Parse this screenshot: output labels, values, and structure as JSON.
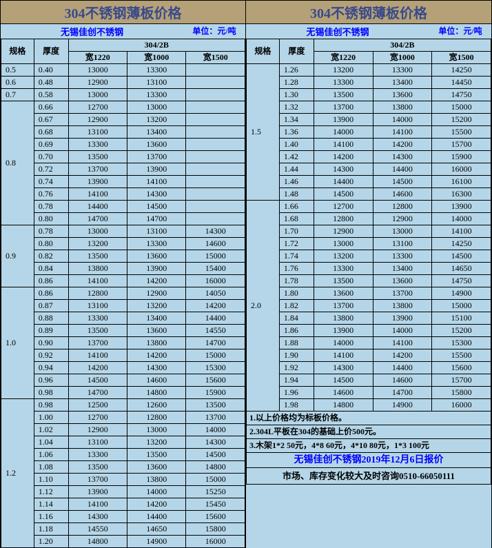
{
  "title": "304不锈钢薄板价格",
  "company": "无锡佳创不锈钢",
  "unit": "单位：元/吨",
  "headers": {
    "spec": "规格",
    "thick": "厚度",
    "grade": "304/2B",
    "w1220": "宽1220",
    "w1000": "宽1000",
    "w1500": "宽1500"
  },
  "colors": {
    "title_bg": "#b5a178",
    "title_fg": "#3a4a8a",
    "cell_bg": "#b5d6e8",
    "link_fg": "#0000ff",
    "border": "#000000"
  },
  "left": [
    {
      "spec": "0.5",
      "rows": [
        {
          "t": "0.40",
          "p": [
            "13000",
            "13300",
            ""
          ]
        }
      ]
    },
    {
      "spec": "0.6",
      "rows": [
        {
          "t": "0.48",
          "p": [
            "12900",
            "13100",
            ""
          ]
        }
      ]
    },
    {
      "spec": "0.7",
      "rows": [
        {
          "t": "0.58",
          "p": [
            "13000",
            "13300",
            ""
          ]
        }
      ]
    },
    {
      "spec": "0.8",
      "rows": [
        {
          "t": "0.66",
          "p": [
            "12700",
            "13000",
            ""
          ]
        },
        {
          "t": "0.67",
          "p": [
            "12900",
            "13200",
            ""
          ]
        },
        {
          "t": "0.68",
          "p": [
            "13100",
            "13400",
            ""
          ]
        },
        {
          "t": "0.69",
          "p": [
            "13300",
            "13600",
            ""
          ]
        },
        {
          "t": "0.70",
          "p": [
            "13500",
            "13700",
            ""
          ]
        },
        {
          "t": "0.72",
          "p": [
            "13700",
            "13900",
            ""
          ]
        },
        {
          "t": "0.74",
          "p": [
            "13900",
            "14100",
            ""
          ]
        },
        {
          "t": "0.76",
          "p": [
            "14100",
            "14300",
            ""
          ]
        },
        {
          "t": "0.78",
          "p": [
            "14400",
            "14500",
            ""
          ]
        },
        {
          "t": "0.80",
          "p": [
            "14700",
            "14700",
            ""
          ]
        }
      ]
    },
    {
      "spec": "0.9",
      "rows": [
        {
          "t": "0.78",
          "p": [
            "13000",
            "13100",
            "14300"
          ]
        },
        {
          "t": "0.80",
          "p": [
            "13200",
            "13300",
            "14600"
          ]
        },
        {
          "t": "0.82",
          "p": [
            "13500",
            "13600",
            "15000"
          ]
        },
        {
          "t": "0.84",
          "p": [
            "13800",
            "13900",
            "15400"
          ]
        },
        {
          "t": "0.86",
          "p": [
            "14100",
            "14200",
            "16000"
          ]
        }
      ]
    },
    {
      "spec": "1.0",
      "rows": [
        {
          "t": "0.86",
          "p": [
            "12800",
            "12900",
            "14050"
          ]
        },
        {
          "t": "0.87",
          "p": [
            "13100",
            "13200",
            "14200"
          ]
        },
        {
          "t": "0.88",
          "p": [
            "13300",
            "13400",
            "14400"
          ]
        },
        {
          "t": "0.89",
          "p": [
            "13500",
            "13600",
            "14550"
          ]
        },
        {
          "t": "0.90",
          "p": [
            "13700",
            "13800",
            "14700"
          ]
        },
        {
          "t": "0.92",
          "p": [
            "14100",
            "14200",
            "15000"
          ]
        },
        {
          "t": "0.94",
          "p": [
            "14200",
            "14300",
            "15300"
          ]
        },
        {
          "t": "0.96",
          "p": [
            "14500",
            "14600",
            "15600"
          ]
        },
        {
          "t": "0.98",
          "p": [
            "14700",
            "14800",
            "15900"
          ]
        }
      ]
    },
    {
      "spec": "1.2",
      "rows": [
        {
          "t": "0.98",
          "p": [
            "12500",
            "12600",
            "13500"
          ]
        },
        {
          "t": "1.00",
          "p": [
            "12700",
            "12800",
            "13700"
          ]
        },
        {
          "t": "1.02",
          "p": [
            "12900",
            "13000",
            "14000"
          ]
        },
        {
          "t": "1.04",
          "p": [
            "13100",
            "13200",
            "14300"
          ]
        },
        {
          "t": "1.06",
          "p": [
            "13300",
            "13500",
            "14500"
          ]
        },
        {
          "t": "1.08",
          "p": [
            "13500",
            "13600",
            "14800"
          ]
        },
        {
          "t": "1.10",
          "p": [
            "13700",
            "13800",
            "15000"
          ]
        },
        {
          "t": "1.12",
          "p": [
            "13900",
            "14000",
            "15250"
          ]
        },
        {
          "t": "1.14",
          "p": [
            "14100",
            "14200",
            "15450"
          ]
        },
        {
          "t": "1.16",
          "p": [
            "14300",
            "14400",
            "15600"
          ]
        },
        {
          "t": "1.18",
          "p": [
            "14550",
            "14650",
            "15800"
          ]
        },
        {
          "t": "1.20",
          "p": [
            "14800",
            "14900",
            "16000"
          ]
        }
      ]
    }
  ],
  "right": [
    {
      "spec": "1.5",
      "rows": [
        {
          "t": "1.26",
          "p": [
            "13200",
            "13300",
            "14250"
          ]
        },
        {
          "t": "1.28",
          "p": [
            "13300",
            "13400",
            "14450"
          ]
        },
        {
          "t": "1.30",
          "p": [
            "13500",
            "13600",
            "14750"
          ]
        },
        {
          "t": "1.32",
          "p": [
            "13700",
            "13800",
            "15000"
          ]
        },
        {
          "t": "1.34",
          "p": [
            "13900",
            "14000",
            "15200"
          ]
        },
        {
          "t": "1.36",
          "p": [
            "14000",
            "14100",
            "15500"
          ]
        },
        {
          "t": "1.40",
          "p": [
            "14100",
            "14200",
            "15700"
          ]
        },
        {
          "t": "1.42",
          "p": [
            "14200",
            "14300",
            "15900"
          ]
        },
        {
          "t": "1.44",
          "p": [
            "14300",
            "14400",
            "16000"
          ]
        },
        {
          "t": "1.46",
          "p": [
            "14400",
            "14500",
            "16100"
          ]
        },
        {
          "t": "1.48",
          "p": [
            "14500",
            "14600",
            "16300"
          ]
        }
      ]
    },
    {
      "spec": "2.0",
      "rows": [
        {
          "t": "1.66",
          "p": [
            "12700",
            "12800",
            "13900"
          ]
        },
        {
          "t": "1.68",
          "p": [
            "12800",
            "12900",
            "14000"
          ]
        },
        {
          "t": "1.70",
          "p": [
            "12900",
            "13000",
            "14100"
          ]
        },
        {
          "t": "1.72",
          "p": [
            "13000",
            "13100",
            "14250"
          ]
        },
        {
          "t": "1.74",
          "p": [
            "13200",
            "13300",
            "14500"
          ]
        },
        {
          "t": "1.76",
          "p": [
            "13300",
            "13400",
            "14650"
          ]
        },
        {
          "t": "1.78",
          "p": [
            "13500",
            "13600",
            "14750"
          ]
        },
        {
          "t": "1.80",
          "p": [
            "13600",
            "13700",
            "14900"
          ]
        },
        {
          "t": "1.82",
          "p": [
            "13700",
            "13800",
            "15000"
          ]
        },
        {
          "t": "1.84",
          "p": [
            "13800",
            "13900",
            "15100"
          ]
        },
        {
          "t": "1.86",
          "p": [
            "13900",
            "14000",
            "15200"
          ]
        },
        {
          "t": "1.88",
          "p": [
            "14000",
            "14100",
            "15300"
          ]
        },
        {
          "t": "1.90",
          "p": [
            "14100",
            "14200",
            "15500"
          ]
        },
        {
          "t": "1.92",
          "p": [
            "14300",
            "14400",
            "15600"
          ]
        },
        {
          "t": "1.94",
          "p": [
            "14500",
            "14600",
            "15700"
          ]
        },
        {
          "t": "1.96",
          "p": [
            "14600",
            "14700",
            "15800"
          ]
        },
        {
          "t": "1.98",
          "p": [
            "14800",
            "14900",
            "16000"
          ]
        }
      ]
    }
  ],
  "notes": [
    "1.以上价格均为标板价格。",
    "2.304L平板在304的基础上价500元。",
    "3.木架1*2 50元，4*8 60元，4*10 80元，1*3 100元"
  ],
  "date_line": "无锡佳创不锈钢2019年12月6日报价",
  "contact_line": "市场、库存变化较大及时咨询0510-66050111"
}
